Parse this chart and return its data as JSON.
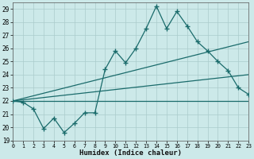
{
  "xlabel": "Humidex (Indice chaleur)",
  "xlim": [
    0,
    23
  ],
  "ylim": [
    19,
    29.5
  ],
  "yticks": [
    19,
    20,
    21,
    22,
    23,
    24,
    25,
    26,
    27,
    28,
    29
  ],
  "xticks": [
    0,
    1,
    2,
    3,
    4,
    5,
    6,
    7,
    8,
    9,
    10,
    11,
    12,
    13,
    14,
    15,
    16,
    17,
    18,
    19,
    20,
    21,
    22,
    23
  ],
  "background_color": "#cce9e9",
  "grid_color": "#aacccc",
  "line_color": "#1a6b6b",
  "line_width": 0.9,
  "marker": "+",
  "marker_size": 5,
  "series": [
    {
      "x": [
        0,
        1,
        2,
        3,
        4,
        5,
        6,
        7,
        8,
        9,
        10,
        11,
        12,
        13,
        14,
        15,
        16,
        17,
        18,
        19,
        20,
        21,
        22,
        23
      ],
      "y": [
        22.0,
        21.9,
        21.4,
        19.9,
        20.7,
        19.6,
        20.3,
        21.1,
        21.1,
        24.4,
        25.8,
        24.9,
        26.0,
        27.5,
        29.2,
        27.5,
        28.8,
        27.7,
        26.5,
        25.8,
        25.0,
        24.3,
        23.0,
        22.5
      ],
      "has_marker": true
    },
    {
      "x": [
        0,
        23
      ],
      "y": [
        22.0,
        26.5
      ],
      "has_marker": false
    },
    {
      "x": [
        0,
        23
      ],
      "y": [
        22.0,
        24.0
      ],
      "has_marker": false
    },
    {
      "x": [
        0,
        23
      ],
      "y": [
        22.0,
        22.0
      ],
      "has_marker": false
    }
  ]
}
